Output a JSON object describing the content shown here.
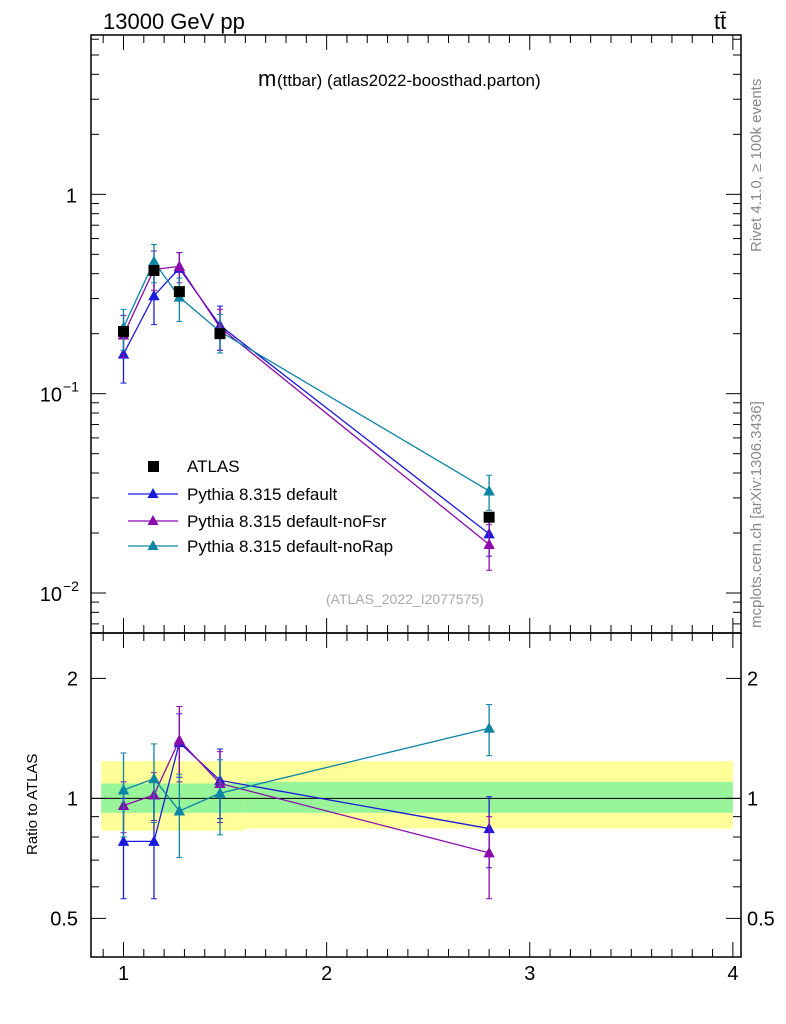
{
  "header": {
    "energy_label": "13000 GeV pp",
    "process_label": "tt̄",
    "rivet_label": "Rivet 4.1.0, ≥ 100k events",
    "mcplots_label": "mcplots.cern.ch [arXiv:1306.3436]"
  },
  "chart_data": {
    "type": "line",
    "title": "m(ttbar) (atlas2022-boosthad.parton)",
    "title_main": "m",
    "title_sub": "(ttbar)  (atlas2022-boosthad.parton)",
    "watermark": "(ATLAS_2022_I2077575)",
    "xlim": [
      0.84,
      4.04
    ],
    "ylim_main": [
      0.0063,
      6.3
    ],
    "ylim_ratio": [
      0.4,
      2.6
    ],
    "yscale": "log",
    "x_ticks": [
      "1",
      "2",
      "3",
      "4"
    ],
    "main_y_ticks": [
      "10",
      "10",
      "1"
    ],
    "main_y_tick_exponents": [
      "−2",
      "−1",
      ""
    ],
    "ratio_y_ticks": [
      "0.5",
      "1",
      "2"
    ],
    "ratio_ylabel": "Ratio to ATLAS",
    "x": [
      1.0,
      1.15,
      1.275,
      1.475,
      2.8
    ],
    "data": {
      "name": "ATLAS",
      "values": [
        0.205,
        0.415,
        0.325,
        0.2,
        0.024
      ],
      "band_inner": [
        0.92,
        0.92,
        0.92,
        0.91,
        0.92
      ],
      "band_inner_hi": [
        1.09,
        1.09,
        1.09,
        1.1,
        1.1
      ],
      "band_outer_lo": [
        0.83,
        0.83,
        0.83,
        0.83,
        0.84
      ],
      "band_outer_hi": [
        1.24,
        1.24,
        1.24,
        1.25,
        1.24
      ],
      "band_edges": [
        0.89,
        1.6,
        4.0
      ]
    },
    "series": [
      {
        "name": "Pythia 8.315 default",
        "color": "#1a1adb",
        "values": [
          0.158,
          0.31,
          0.425,
          0.22,
          0.0198
        ],
        "err_lo": [
          0.045,
          0.088,
          0.085,
          0.055,
          0.0045
        ],
        "err_hi": [
          0.05,
          0.1,
          0.085,
          0.055,
          0.0045
        ],
        "ratio": [
          0.78,
          0.78,
          1.38,
          1.11,
          0.84
        ],
        "ratio_err": [
          0.22,
          0.22,
          0.25,
          0.22,
          0.17
        ]
      },
      {
        "name": "Pythia 8.315 default-noFsr",
        "color": "#8a0aad",
        "values": [
          0.197,
          0.42,
          0.435,
          0.215,
          0.0175
        ],
        "err_lo": [
          0.045,
          0.09,
          0.075,
          0.05,
          0.0045
        ],
        "err_hi": [
          0.05,
          0.1,
          0.075,
          0.05,
          0.0045
        ],
        "ratio": [
          0.96,
          1.02,
          1.4,
          1.09,
          0.73
        ],
        "ratio_err": [
          0.14,
          0.14,
          0.3,
          0.22,
          0.17
        ]
      },
      {
        "name": "Pythia 8.315 default-noRap",
        "color": "#0b84a5",
        "values": [
          0.215,
          0.46,
          0.305,
          0.205,
          0.0325
        ],
        "err_lo": [
          0.05,
          0.1,
          0.075,
          0.045,
          0.0065
        ],
        "err_hi": [
          0.05,
          0.1,
          0.075,
          0.045,
          0.0065
        ],
        "ratio": [
          1.05,
          1.12,
          0.93,
          1.03,
          1.5
        ],
        "ratio_err": [
          0.25,
          0.25,
          0.22,
          0.22,
          0.22
        ]
      }
    ],
    "legend_position": "lower-left"
  }
}
